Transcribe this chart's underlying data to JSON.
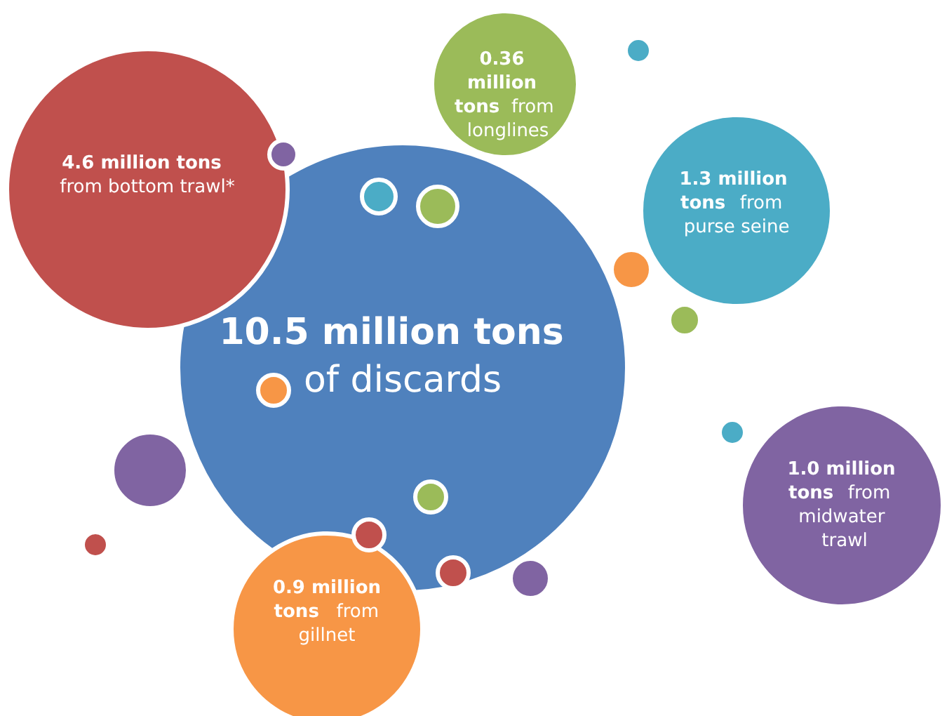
{
  "chart_data": {
    "type": "other",
    "categories": [
      "of discards",
      "from bottom trawl*",
      "from longlines",
      "from purse seine",
      "from midwater trawl",
      "from gillnet"
    ],
    "values": [
      10.5,
      4.6,
      0.36,
      1.3,
      1.0,
      0.9
    ],
    "value_labels": [
      "10.5 million tons",
      "4.6 million tons",
      "0.36 million tons",
      "1.3 million tons",
      "1.0 million tons",
      "0.9 million tons"
    ],
    "colors": [
      "#4f81bd",
      "#c0504d",
      "#9bbb59",
      "#4bacc6",
      "#8064a2",
      "#f79646"
    ]
  }
}
